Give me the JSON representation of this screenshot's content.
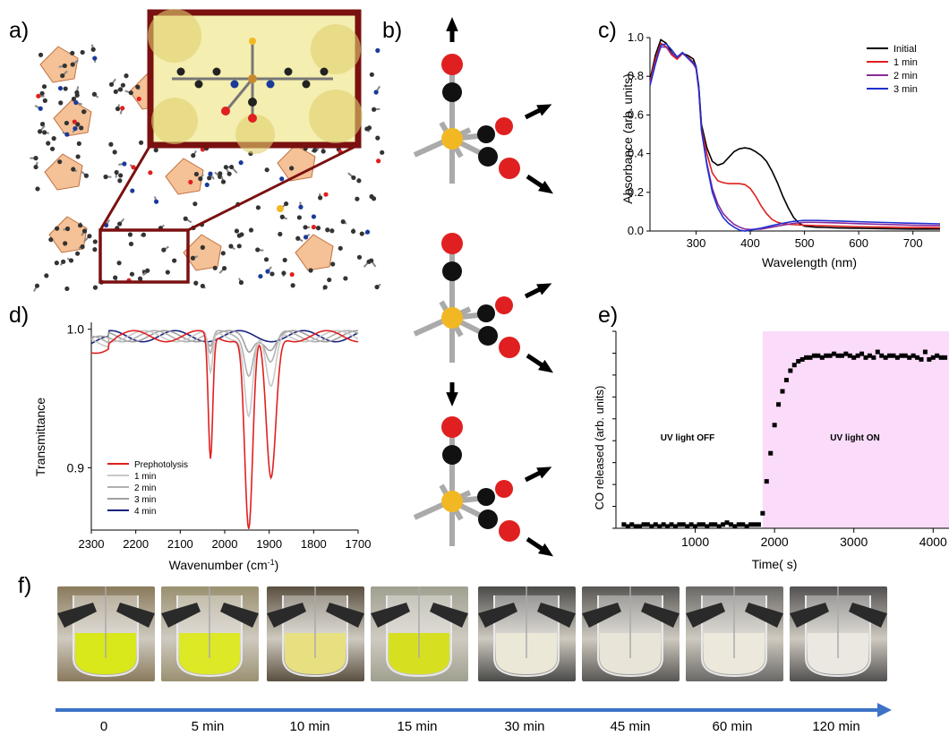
{
  "panels": {
    "a": "a)",
    "b": "b)",
    "c": "c)",
    "d": "d)",
    "e": "e)",
    "f": "f)"
  },
  "colors": {
    "inset_frame": "#7a1010",
    "oxygen": "#e02020",
    "carbon": "#111111",
    "metal": "#f2b824",
    "uv_region": "#fadcfa",
    "timeline": "#3d72c8"
  },
  "chart_c": {
    "type": "line",
    "xlabel": "Wavelength (nm)",
    "ylabel": "Absorbance (arb. units)",
    "xticks": [
      "300",
      "400",
      "500",
      "600",
      "700"
    ],
    "yticks": [
      "0.0",
      "0.2",
      "0.4",
      "0.6",
      "0.8",
      "1.0"
    ],
    "xlim": [
      215,
      750
    ],
    "ylim": [
      0,
      1.0
    ],
    "legend_position": "top-right",
    "series": [
      {
        "name": "Initial",
        "color": "#000000",
        "x": [
          215,
          225,
          235,
          245,
          255,
          265,
          275,
          285,
          295,
          300,
          305,
          310,
          320,
          330,
          340,
          350,
          360,
          370,
          380,
          390,
          400,
          410,
          420,
          430,
          440,
          450,
          460,
          470,
          480,
          490,
          500,
          520,
          540,
          560,
          600,
          650,
          700,
          750
        ],
        "y": [
          0.78,
          0.9,
          0.98,
          0.97,
          0.93,
          0.9,
          0.92,
          0.9,
          0.88,
          0.85,
          0.75,
          0.55,
          0.43,
          0.36,
          0.34,
          0.35,
          0.38,
          0.41,
          0.425,
          0.43,
          0.425,
          0.41,
          0.39,
          0.36,
          0.31,
          0.25,
          0.18,
          0.12,
          0.07,
          0.04,
          0.025,
          0.02,
          0.018,
          0.016,
          0.014,
          0.012,
          0.01,
          0.01
        ]
      },
      {
        "name": "1 min",
        "color": "#e02020",
        "x": [
          215,
          225,
          235,
          245,
          255,
          265,
          275,
          285,
          295,
          300,
          305,
          310,
          320,
          330,
          340,
          350,
          360,
          370,
          380,
          390,
          400,
          410,
          420,
          430,
          440,
          450,
          460,
          470,
          480,
          500,
          520,
          560,
          600,
          650,
          700,
          750
        ],
        "y": [
          0.76,
          0.88,
          0.97,
          0.96,
          0.92,
          0.89,
          0.91,
          0.89,
          0.87,
          0.84,
          0.74,
          0.53,
          0.4,
          0.3,
          0.26,
          0.25,
          0.245,
          0.245,
          0.245,
          0.24,
          0.22,
          0.18,
          0.13,
          0.09,
          0.06,
          0.045,
          0.038,
          0.035,
          0.033,
          0.03,
          0.028,
          0.025,
          0.022,
          0.02,
          0.018,
          0.017
        ]
      },
      {
        "name": "2 min",
        "color": "#8a2a9a",
        "x": [
          215,
          225,
          235,
          245,
          255,
          265,
          275,
          285,
          295,
          300,
          305,
          310,
          320,
          330,
          340,
          350,
          360,
          370,
          380,
          390,
          400,
          420,
          440,
          460,
          480,
          500,
          520,
          560,
          600,
          650,
          700,
          750
        ],
        "y": [
          0.75,
          0.87,
          0.96,
          0.96,
          0.92,
          0.89,
          0.91,
          0.89,
          0.87,
          0.84,
          0.73,
          0.52,
          0.35,
          0.22,
          0.14,
          0.09,
          0.06,
          0.035,
          0.02,
          0.01,
          0.008,
          0.01,
          0.02,
          0.03,
          0.04,
          0.045,
          0.045,
          0.042,
          0.038,
          0.034,
          0.03,
          0.028
        ]
      },
      {
        "name": "3 min",
        "color": "#2030d0",
        "x": [
          215,
          225,
          235,
          245,
          255,
          265,
          275,
          285,
          295,
          300,
          305,
          310,
          320,
          330,
          340,
          350,
          360,
          370,
          380,
          390,
          400,
          420,
          440,
          460,
          480,
          500,
          520,
          560,
          600,
          650,
          700,
          750
        ],
        "y": [
          0.75,
          0.87,
          0.97,
          0.97,
          0.93,
          0.89,
          0.92,
          0.9,
          0.88,
          0.85,
          0.74,
          0.52,
          0.34,
          0.2,
          0.12,
          0.07,
          0.04,
          0.02,
          0.005,
          0.0,
          0.005,
          0.015,
          0.028,
          0.04,
          0.05,
          0.055,
          0.055,
          0.052,
          0.048,
          0.044,
          0.04,
          0.037
        ]
      }
    ]
  },
  "chart_d": {
    "type": "line",
    "xlabel": "Wavenumber (cm",
    "xlabel_sup": "-1",
    "xlabel_end": ")",
    "ylabel": "Transmittance",
    "xticks": [
      "2300",
      "2200",
      "2100",
      "2000",
      "1900",
      "1800",
      "1700"
    ],
    "yticks": [
      "0.9",
      "1.0"
    ],
    "xlim": [
      2300,
      1700
    ],
    "ylim": [
      0.855,
      1.005
    ],
    "legend_position": "bottom-left",
    "series": [
      {
        "name": "Prephotolysis",
        "color": "#e02020"
      },
      {
        "name": "1 min",
        "color": "#c8c8c8"
      },
      {
        "name": "2 min",
        "color": "#b0b0b0"
      },
      {
        "name": "3 min",
        "color": "#a0a0a0"
      },
      {
        "name": "4 min",
        "color": "#1a237e"
      }
    ],
    "peaks": [
      {
        "name": "Prephotolysis",
        "centers": [
          2032,
          1946,
          1896
        ],
        "depths": [
          0.09,
          0.14,
          0.105
        ],
        "widths": [
          5,
          9,
          11
        ]
      },
      {
        "name": "1 min",
        "centers": [
          2032,
          1946,
          1896
        ],
        "depths": [
          0.03,
          0.055,
          0.04
        ],
        "widths": [
          5,
          9,
          11
        ]
      },
      {
        "name": "2 min",
        "centers": [
          2032,
          1946,
          1896
        ],
        "depths": [
          0.015,
          0.025,
          0.02
        ],
        "widths": [
          5,
          9,
          11
        ]
      },
      {
        "name": "3 min",
        "centers": [
          2032,
          1946,
          1896
        ],
        "depths": [
          0.006,
          0.01,
          0.008
        ],
        "widths": [
          5,
          9,
          11
        ]
      },
      {
        "name": "4 min",
        "centers": [
          2032,
          1946,
          1896
        ],
        "depths": [
          0.0,
          0.0,
          0.0
        ],
        "widths": [
          5,
          9,
          11
        ]
      }
    ]
  },
  "chart_e": {
    "type": "scatter",
    "xlabel": "Time( s)",
    "ylabel": "CO released (arb. units)",
    "xticks": [
      "1000",
      "2000",
      "3000",
      "4000"
    ],
    "xlim": [
      0,
      4200
    ],
    "ylim": [
      0,
      1.05
    ],
    "annotations": [
      "UV light OFF",
      "UV light ON"
    ],
    "uv_on_start": 1850,
    "x": [
      100,
      150,
      200,
      250,
      300,
      350,
      400,
      450,
      500,
      550,
      600,
      650,
      700,
      750,
      800,
      850,
      900,
      950,
      1000,
      1050,
      1100,
      1150,
      1200,
      1250,
      1300,
      1350,
      1400,
      1450,
      1500,
      1550,
      1600,
      1650,
      1700,
      1750,
      1800,
      1850,
      1900,
      1950,
      2000,
      2050,
      2100,
      2150,
      2200,
      2250,
      2300,
      2350,
      2400,
      2450,
      2500,
      2550,
      2600,
      2650,
      2700,
      2750,
      2800,
      2850,
      2900,
      2950,
      3000,
      3050,
      3100,
      3150,
      3200,
      3250,
      3300,
      3350,
      3400,
      3450,
      3500,
      3550,
      3600,
      3650,
      3700,
      3750,
      3800,
      3850,
      3900,
      3950,
      4000,
      4050,
      4100,
      4150
    ],
    "y": [
      0.02,
      0.01,
      0.02,
      0.01,
      0.01,
      0.02,
      0.02,
      0.01,
      0.02,
      0.01,
      0.02,
      0.01,
      0.02,
      0.01,
      0.02,
      0.02,
      0.01,
      0.02,
      0.01,
      0.02,
      0.02,
      0.01,
      0.02,
      0.02,
      0.01,
      0.02,
      0.03,
      0.02,
      0.01,
      0.02,
      0.02,
      0.01,
      0.02,
      0.02,
      0.02,
      0.08,
      0.25,
      0.4,
      0.55,
      0.66,
      0.73,
      0.79,
      0.84,
      0.87,
      0.89,
      0.9,
      0.91,
      0.91,
      0.92,
      0.92,
      0.91,
      0.92,
      0.92,
      0.93,
      0.92,
      0.92,
      0.93,
      0.92,
      0.91,
      0.92,
      0.93,
      0.91,
      0.92,
      0.91,
      0.94,
      0.92,
      0.91,
      0.92,
      0.92,
      0.91,
      0.92,
      0.92,
      0.91,
      0.92,
      0.91,
      0.9,
      0.94,
      0.9,
      0.91,
      0.92,
      0.91,
      0.91
    ]
  },
  "timeline": {
    "labels": [
      "0",
      "5 min",
      "10 min",
      "15 min",
      "30 min",
      "45 min",
      "60 min",
      "120 min"
    ],
    "photo_fill": [
      {
        "liquid": "#d8e81a",
        "bg": "#8a7a5c"
      },
      {
        "liquid": "#dde826",
        "bg": "#9a9070"
      },
      {
        "liquid": "#e8e080",
        "bg": "#5a5040"
      },
      {
        "liquid": "#d6e020",
        "bg": "#a0a090"
      },
      {
        "liquid": "#ece8d8",
        "bg": "#4a4a48"
      },
      {
        "liquid": "#e8e4d8",
        "bg": "#585654"
      },
      {
        "liquid": "#ece8dc",
        "bg": "#6a6866"
      },
      {
        "liquid": "#ebe8e2",
        "bg": "#525050"
      }
    ]
  }
}
